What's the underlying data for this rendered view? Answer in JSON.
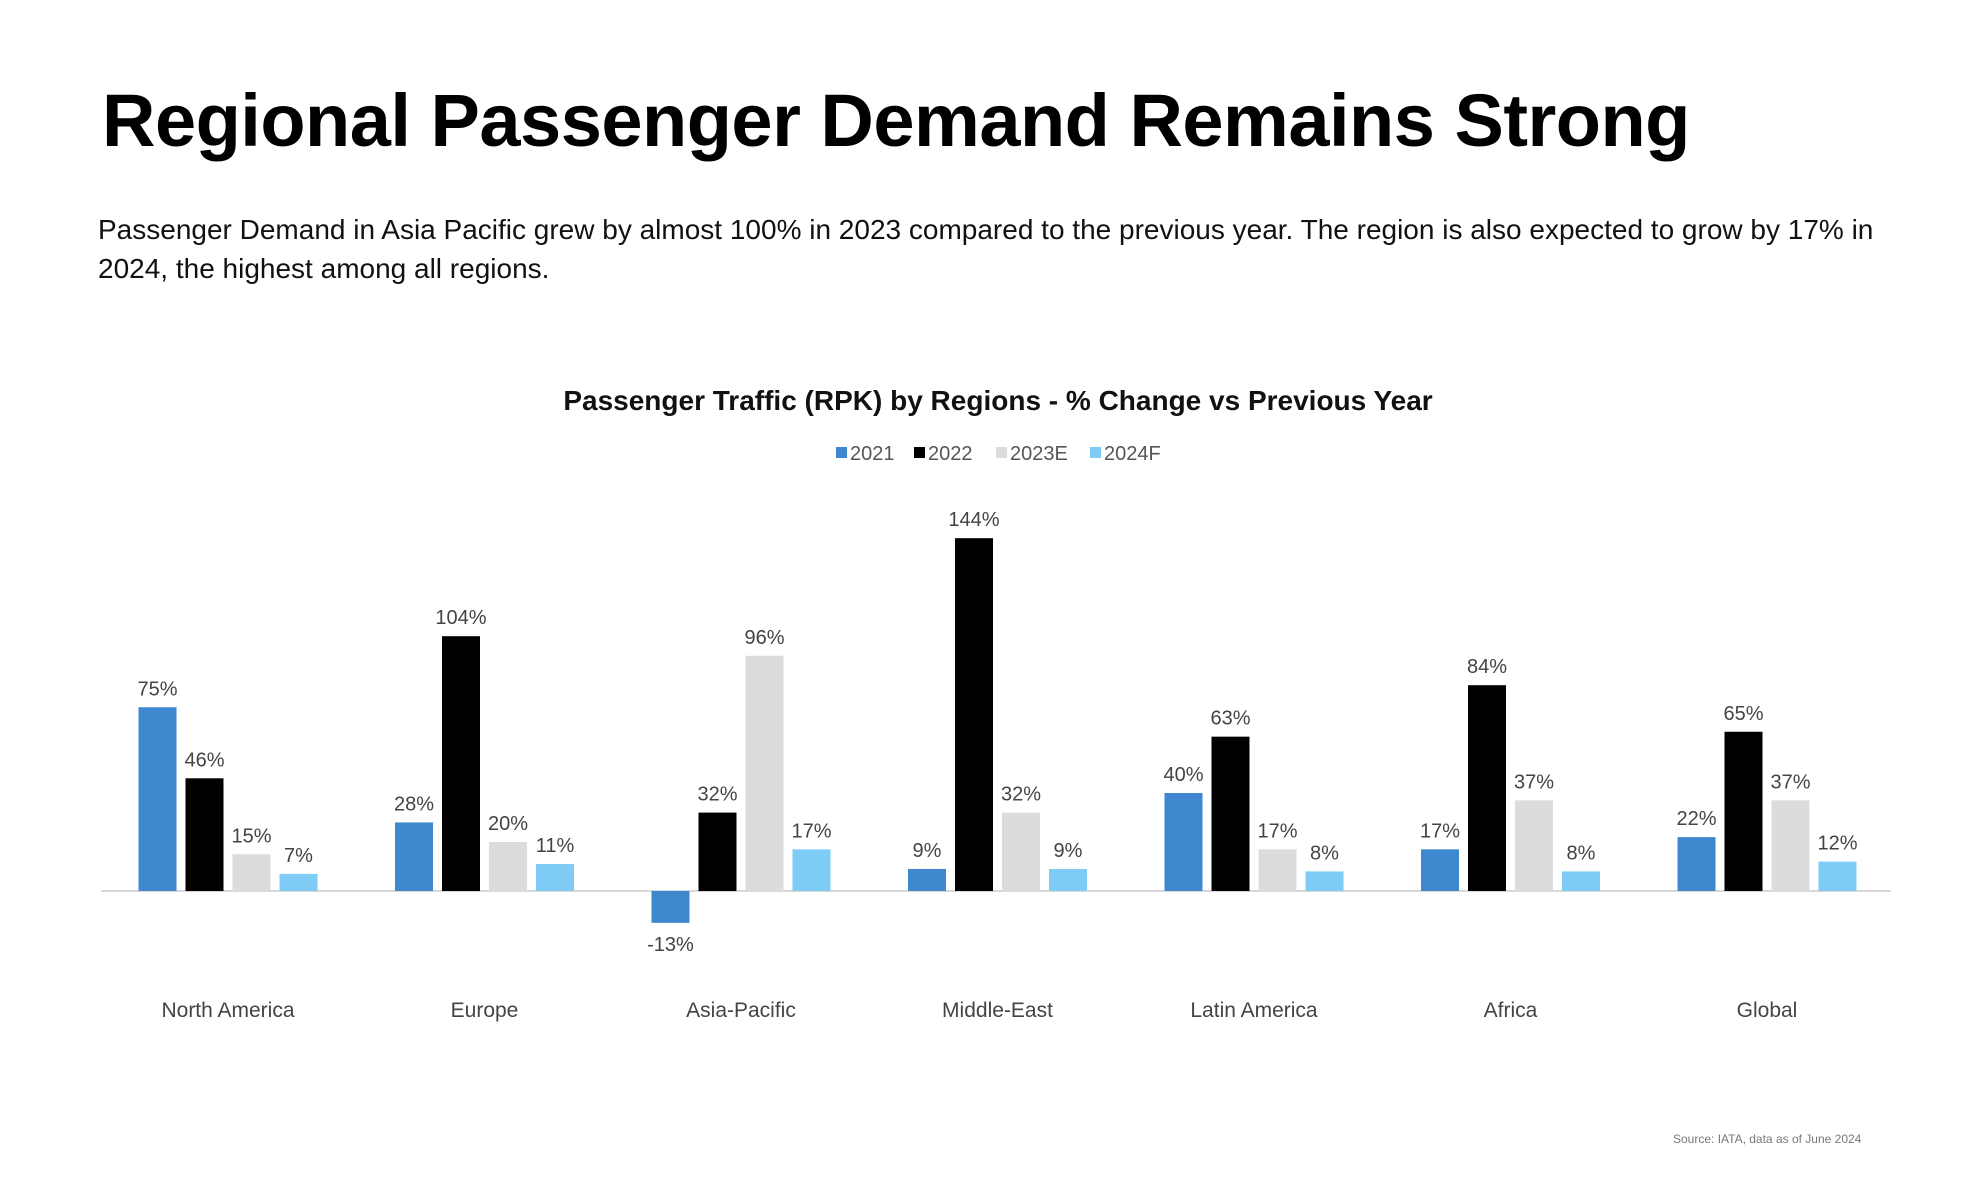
{
  "header": {
    "title": "Regional Passenger Demand Remains Strong",
    "subtitle": "Passenger Demand in Asia Pacific grew by almost 100% in 2023 compared to the previous year. The region is also expected to grow by 17% in 2024, the highest among all regions."
  },
  "footer": {
    "source": "Source: IATA, data as of June 2024"
  },
  "chart_data": {
    "type": "bar",
    "title": "Passenger Traffic (RPK) by Regions - % Change vs Previous Year",
    "categories": [
      "North America",
      "Europe",
      "Asia-Pacific",
      "Middle-East",
      "Latin America",
      "Africa",
      "Global"
    ],
    "series": [
      {
        "name": "2021",
        "color": "#3f88d0",
        "values": [
          75,
          28,
          -13,
          9,
          40,
          17,
          22
        ]
      },
      {
        "name": "2022",
        "color": "#000000",
        "values": [
          46,
          104,
          32,
          144,
          63,
          84,
          65
        ]
      },
      {
        "name": "2023E",
        "color": "#dcdcdc",
        "values": [
          15,
          20,
          96,
          32,
          17,
          37,
          37
        ]
      },
      {
        "name": "2024F",
        "color": "#7fcdf7",
        "values": [
          7,
          11,
          17,
          9,
          8,
          8,
          12
        ]
      }
    ],
    "unit": "%",
    "legend": "top-center",
    "grid": false,
    "ylim": [
      -13,
      144
    ]
  }
}
